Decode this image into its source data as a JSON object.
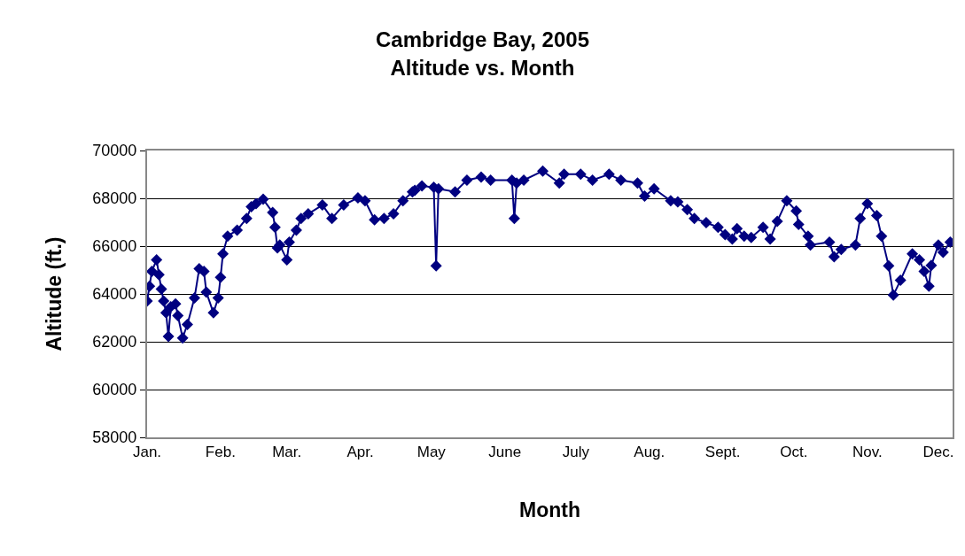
{
  "chart_data": {
    "type": "line",
    "title": "Cambridge Bay, 2005\nAltitude vs. Month",
    "xlabel": "Month",
    "ylabel": "Altitude (ft.)",
    "x": [
      "--01-01",
      "--01-02",
      "--01-03",
      "--01-05",
      "--01-06",
      "--01-07",
      "--01-08",
      "--01-09",
      "--01-10",
      "--01-11",
      "--01-13",
      "--01-14",
      "--01-16",
      "--01-18",
      "--01-21",
      "--01-23",
      "--01-25",
      "--01-26",
      "--01-29",
      "--01-31",
      "--02-01",
      "--02-02",
      "--02-04",
      "--02-08",
      "--02-12",
      "--02-14",
      "--02-16",
      "--02-19",
      "--02-23",
      "--02-24",
      "--02-25",
      "--02-26",
      "--03-01",
      "--03-02",
      "--03-05",
      "--03-07",
      "--03-10",
      "--03-16",
      "--03-20",
      "--03-25",
      "--03-31",
      "--04-03",
      "--04-07",
      "--04-11",
      "--04-15",
      "--04-19",
      "--04-23",
      "--04-24",
      "--04-27",
      "--05-02",
      "--05-03",
      "--05-04",
      "--05-11",
      "--05-16",
      "--05-22",
      "--05-26",
      "--06-04",
      "--06-05",
      "--06-06",
      "--06-09",
      "--06-17",
      "--06-24",
      "--06-26",
      "--07-03",
      "--07-08",
      "--07-15",
      "--07-20",
      "--07-27",
      "--07-30",
      "--08-03",
      "--08-10",
      "--08-13",
      "--08-17",
      "--08-20",
      "--08-25",
      "--08-30",
      "--09-02",
      "--09-05",
      "--09-07",
      "--09-10",
      "--09-13",
      "--09-18",
      "--09-21",
      "--09-24",
      "--09-28",
      "--10-02",
      "--10-03",
      "--10-07",
      "--10-08",
      "--10-16",
      "--10-18",
      "--10-21",
      "--10-27",
      "--10-29",
      "--11-01",
      "--11-05",
      "--11-07",
      "--11-10",
      "--11-12",
      "--11-15",
      "--11-20",
      "--11-23",
      "--11-25",
      "--11-27",
      "--11-28",
      "--12-01",
      "--12-03",
      "--12-06"
    ],
    "series": [
      {
        "color": "#000080",
        "values": [
          63700,
          64320,
          64940,
          65430,
          64810,
          64200,
          63700,
          63210,
          62220,
          63460,
          63580,
          63090,
          62160,
          62720,
          63830,
          65060,
          64940,
          64070,
          63210,
          63830,
          64690,
          65680,
          66420,
          66670,
          67160,
          67650,
          67780,
          67960,
          67410,
          66790,
          65930,
          66050,
          65430,
          66170,
          66670,
          67160,
          67350,
          67720,
          67160,
          67720,
          68020,
          67900,
          67100,
          67160,
          67350,
          67900,
          68270,
          68330,
          68520,
          68460,
          65180,
          68400,
          68270,
          68760,
          68890,
          68760,
          68760,
          67160,
          68640,
          68760,
          69140,
          68640,
          69010,
          69010,
          68760,
          69010,
          68760,
          68640,
          68090,
          68400,
          67900,
          67850,
          67530,
          67160,
          66980,
          66790,
          66480,
          66300,
          66730,
          66420,
          66360,
          66790,
          66300,
          67040,
          67900,
          67470,
          66910,
          66420,
          66050,
          66170,
          65560,
          65860,
          66050,
          67160,
          67780,
          67280,
          66420,
          65180,
          63950,
          64570,
          65680,
          65430,
          64940,
          64320,
          65190,
          66050,
          65740,
          66170
        ]
      }
    ],
    "xlim": [
      "--01-01",
      "--12-07"
    ],
    "xticks": [
      {
        "value": "--01-01",
        "label": "Jan."
      },
      {
        "value": "--02-01",
        "label": "Feb."
      },
      {
        "value": "--03-01",
        "label": "Mar."
      },
      {
        "value": "--04-01",
        "label": "Apr."
      },
      {
        "value": "--05-01",
        "label": "May"
      },
      {
        "value": "--06-01",
        "label": "June"
      },
      {
        "value": "--07-01",
        "label": "July"
      },
      {
        "value": "--08-01",
        "label": "Aug."
      },
      {
        "value": "--09-01",
        "label": "Sept."
      },
      {
        "value": "--10-01",
        "label": "Oct."
      },
      {
        "value": "--11-01",
        "label": "Nov."
      },
      {
        "value": "--12-01",
        "label": "Dec."
      }
    ],
    "ylim": [
      58000,
      70000
    ],
    "yticks": [
      58000,
      60000,
      62000,
      64000,
      66000,
      68000,
      70000
    ],
    "grid": "y",
    "marker": "diamond",
    "line_style": "solid"
  }
}
